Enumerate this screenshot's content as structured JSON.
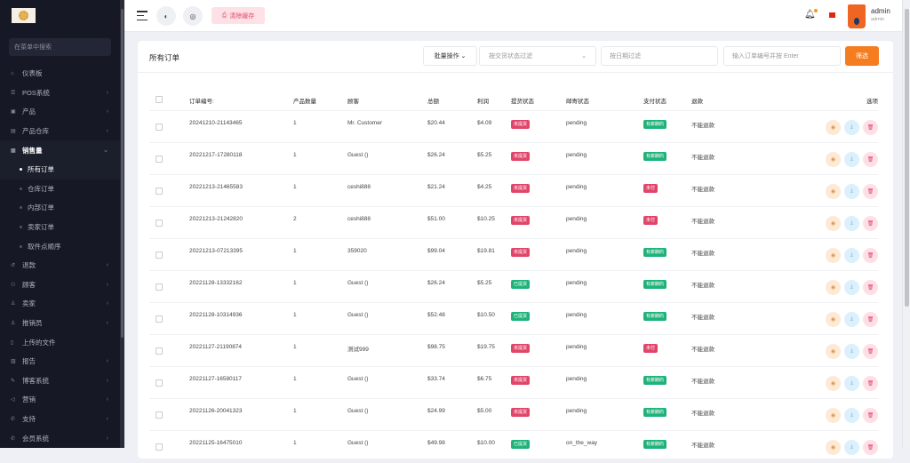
{
  "sidebar": {
    "search_placeholder": "在菜单中搜索",
    "items": [
      {
        "label": "仪表板",
        "icon": "home-icon",
        "chev": false
      },
      {
        "label": "POS系统",
        "icon": "list-icon",
        "chev": true
      },
      {
        "label": "产品",
        "icon": "box-icon",
        "chev": true
      },
      {
        "label": "产品仓库",
        "icon": "warehouse-icon",
        "chev": true
      },
      {
        "label": "销售量",
        "icon": "cart-icon",
        "chev": true,
        "active": true
      }
    ],
    "subitems": [
      {
        "label": "所有订单",
        "current": true
      },
      {
        "label": "仓库订单"
      },
      {
        "label": "内部订单"
      },
      {
        "label": "卖家订单"
      },
      {
        "label": "取件点顺序"
      }
    ],
    "items2": [
      {
        "label": "退款",
        "icon": "refund-icon",
        "chev": true
      },
      {
        "label": "顾客",
        "icon": "users-icon",
        "chev": true
      },
      {
        "label": "卖家",
        "icon": "user-icon",
        "chev": true
      },
      {
        "label": "推销员",
        "icon": "salesman-icon",
        "chev": true
      },
      {
        "label": "上传的文件",
        "icon": "file-icon",
        "chev": false
      },
      {
        "label": "报告",
        "icon": "report-icon",
        "chev": true
      },
      {
        "label": "博客系统",
        "icon": "blog-icon",
        "chev": true
      },
      {
        "label": "营销",
        "icon": "megaphone-icon",
        "chev": true
      },
      {
        "label": "支持",
        "icon": "support-icon",
        "chev": true
      },
      {
        "label": "会员系统",
        "icon": "member-icon",
        "chev": true
      }
    ]
  },
  "topbar": {
    "clear_cache": "清除缓存",
    "user_name": "admin",
    "user_role": "admin"
  },
  "card": {
    "title": "所有订单",
    "bulk": "批量操作",
    "delivery_filter_placeholder": "按交货状态过滤",
    "date_filter_placeholder": "按日期过滤",
    "order_search_placeholder": "输入订单编号并按 Enter",
    "filter_button": "筛选"
  },
  "colors": {
    "red": "#e2456a",
    "green": "#1fb37a",
    "accent": "#f57c1f"
  },
  "table": {
    "headers": [
      "订单编号:",
      "产品数量",
      "顾客",
      "总额",
      "利润",
      "提货状态",
      "邮寄状态",
      "支付状态",
      "退款",
      "选项"
    ],
    "rows": [
      [
        "20241210-21143465",
        "1",
        "Mr. Customer",
        "$20.44",
        "$4.09",
        "未提货",
        "pending",
        "有薪酬的",
        "不能退款"
      ],
      [
        "20221217-17280118",
        "1",
        "Guest ()",
        "$26.24",
        "$5.25",
        "未提货",
        "pending",
        "有薪酬的",
        "不能退款"
      ],
      [
        "20221213-21465583",
        "1",
        "ceshi888",
        "$21.24",
        "$4.25",
        "未提货",
        "pending",
        "未付",
        "不能退款"
      ],
      [
        "20221213-21242820",
        "2",
        "ceshi888",
        "$51.00",
        "$10.25",
        "未提货",
        "pending",
        "未付",
        "不能退款"
      ],
      [
        "20221213-07213395",
        "1",
        "359020",
        "$99.04",
        "$19.81",
        "未提货",
        "pending",
        "有薪酬的",
        "不能退款"
      ],
      [
        "20221128-13332162",
        "1",
        "Guest ()",
        "$26.24",
        "$5.25",
        "已提货",
        "pending",
        "有薪酬的",
        "不能退款"
      ],
      [
        "20221128-10314936",
        "1",
        "Guest ()",
        "$52.48",
        "$10.50",
        "已提货",
        "pending",
        "有薪酬的",
        "不能退款"
      ],
      [
        "20221127-21190874",
        "1",
        "测试999",
        "$98.75",
        "$19.75",
        "未提货",
        "pending",
        "未付",
        "不能退款"
      ],
      [
        "20221127-16580117",
        "1",
        "Guest ()",
        "$33.74",
        "$6.75",
        "未提货",
        "pending",
        "有薪酬的",
        "不能退款"
      ],
      [
        "20221126-20041323",
        "1",
        "Guest ()",
        "$24.99",
        "$5.00",
        "未提货",
        "pending",
        "有薪酬的",
        "不能退款"
      ],
      [
        "20221125-16475010",
        "1",
        "Guest ()",
        "$49.98",
        "$10.00",
        "已提货",
        "on_the_way",
        "有薪酬的",
        "不能退款"
      ]
    ]
  }
}
